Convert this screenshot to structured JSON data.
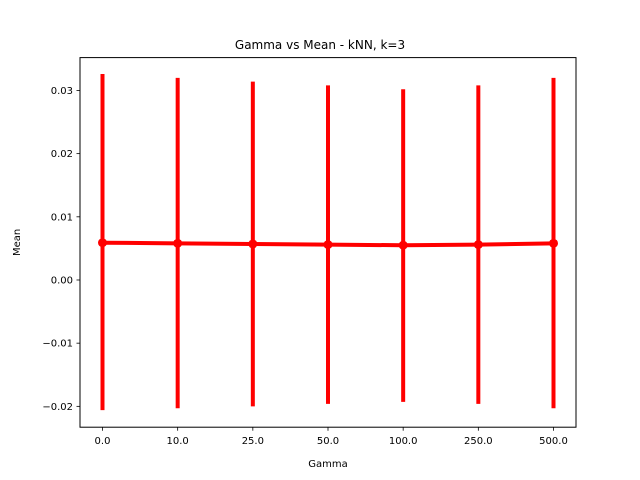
{
  "chart_data": {
    "type": "line",
    "title": "Gamma vs Mean - kNN, k=3",
    "xlabel": "Gamma",
    "ylabel": "Mean",
    "categories": [
      "0.0",
      "10.0",
      "25.0",
      "50.0",
      "100.0",
      "250.0",
      "500.0"
    ],
    "series": [
      {
        "values": [
          0.0059,
          0.0058,
          0.0057,
          0.0056,
          0.0055,
          0.0056,
          0.0058
        ],
        "error_low": [
          -0.0206,
          -0.0203,
          -0.02,
          -0.0196,
          -0.0193,
          -0.0196,
          -0.0203
        ],
        "error_high": [
          0.0326,
          0.032,
          0.0314,
          0.0308,
          0.0302,
          0.0308,
          0.032
        ],
        "color": "#ff0000"
      }
    ],
    "ylim": [
      -0.0233,
      0.0352
    ],
    "yticks": [
      -0.02,
      -0.01,
      0.0,
      0.01,
      0.02,
      0.03
    ],
    "ytick_labels": [
      "−0.02",
      "−0.01",
      "0.00",
      "0.01",
      "0.02",
      "0.03"
    ],
    "grid": false,
    "legend": "none"
  }
}
